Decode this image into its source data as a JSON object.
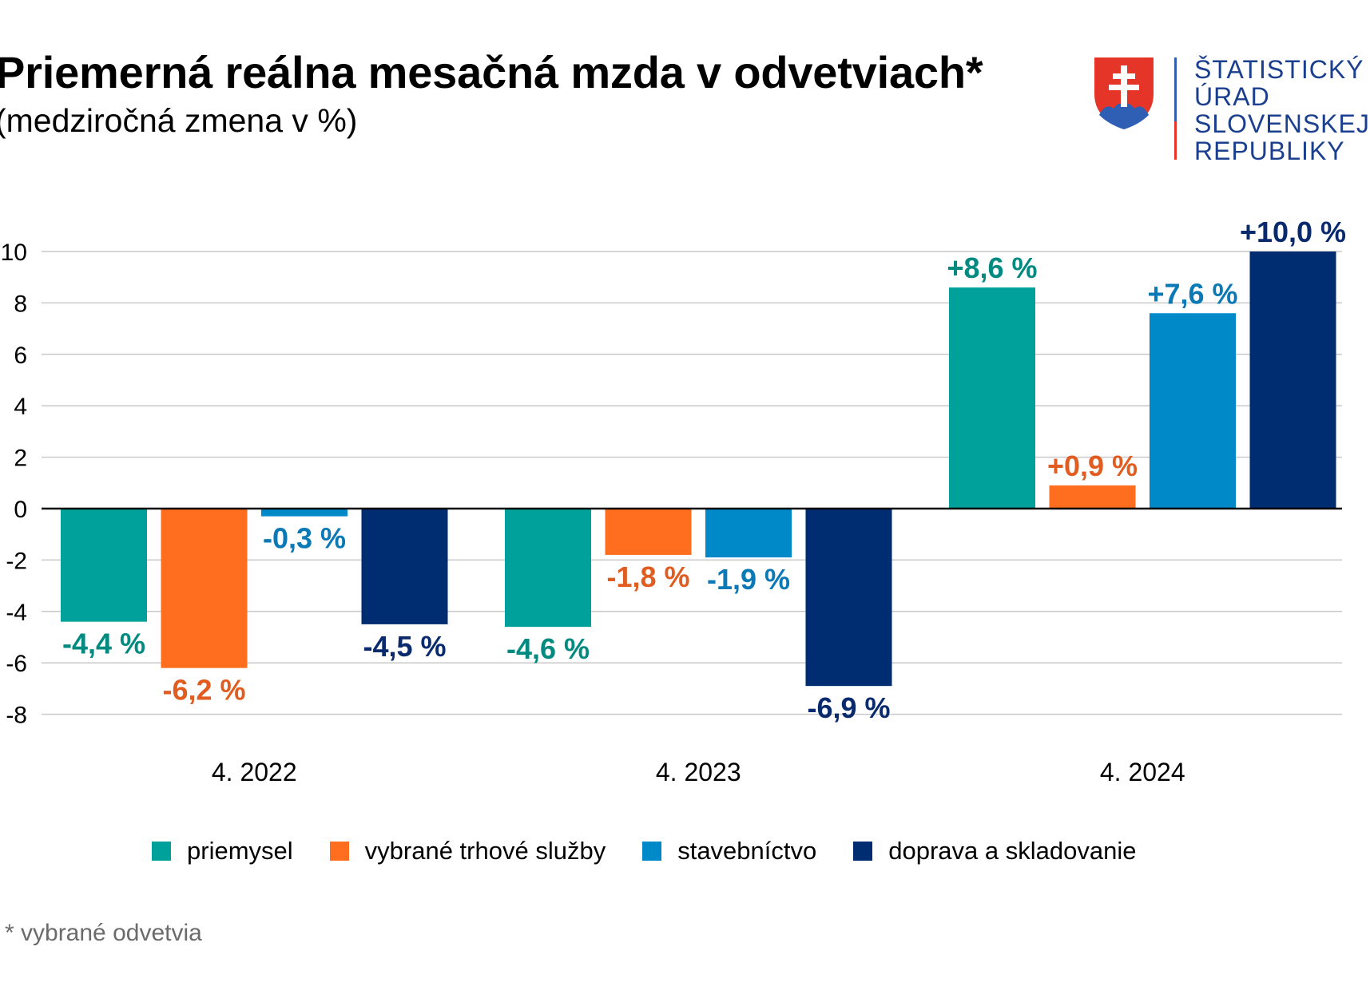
{
  "logo": {
    "lines": [
      "ŠTATISTICKÝ",
      "ÚRAD",
      "SLOVENSKEJ",
      "REPUBLIKY"
    ]
  },
  "chart_data": {
    "type": "bar",
    "title": "Priemerná reálna mesačná mzda v odvetviach*",
    "subtitle": "(medziročná zmena v %)",
    "categories": [
      "4. 2022",
      "4. 2023",
      "4. 2024"
    ],
    "series": [
      {
        "name": "priemysel",
        "color": "#00a19a",
        "values": [
          -4.4,
          -4.6,
          8.6
        ],
        "labels": [
          "-4,4 %",
          "-4,6 %",
          "+8,6 %"
        ],
        "label_color": "#008a80"
      },
      {
        "name": "vybrané trhové služby",
        "color": "#ff6d1f",
        "values": [
          -6.2,
          -1.8,
          0.9
        ],
        "labels": [
          "-6,2 %",
          "-1,8 %",
          "+0,9 %"
        ],
        "label_color": "#e05c20"
      },
      {
        "name": "stavebníctvo",
        "color": "#0089c9",
        "values": [
          -0.3,
          -1.9,
          7.6
        ],
        "labels": [
          "-0,3 %",
          "-1,9 %",
          "+7,6 %"
        ],
        "label_color": "#0a79b5"
      },
      {
        "name": "doprava a skladovanie",
        "color": "#002d72",
        "values": [
          -4.5,
          -6.9,
          10.0
        ],
        "labels": [
          "-4,5 %",
          "-6,9 %",
          "+10,0 %"
        ],
        "label_color": "#0a2a6e"
      }
    ],
    "yticks": [
      10,
      8,
      6,
      4,
      2,
      0,
      -2,
      -4,
      -6,
      -8
    ],
    "ylim": [
      -8,
      10
    ],
    "grid": true,
    "legend_position": "bottom",
    "xlabel": "",
    "ylabel": "",
    "footnote": "* vybrané odvetvia"
  }
}
